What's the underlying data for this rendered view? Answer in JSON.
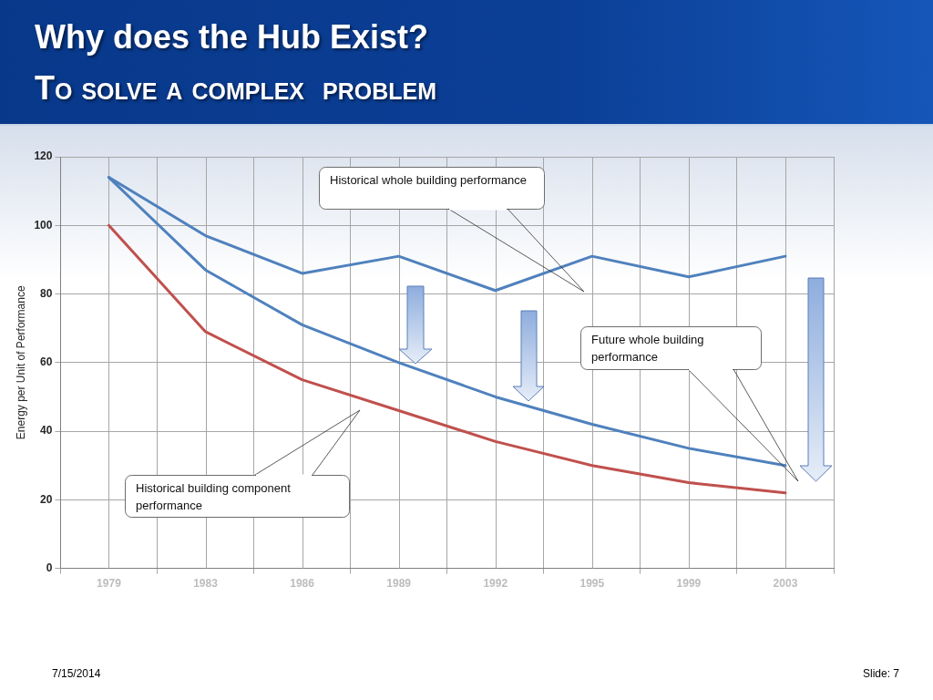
{
  "chart_data": {
    "type": "line",
    "title": "Why does the Hub Exist?",
    "subtitle": "To solve a complex  problem",
    "ylabel": "Energy per Unit of Performance",
    "categories": [
      "1979",
      "1983",
      "1986",
      "1989",
      "1992",
      "1995",
      "1999",
      "2003"
    ],
    "series": [
      {
        "color": "#4f81bd",
        "values": [
          114,
          97,
          86,
          91,
          81,
          91,
          85,
          91
        ]
      },
      {
        "color": "#4f81bd",
        "values": [
          114,
          87,
          71,
          60,
          50,
          42,
          35,
          30
        ]
      },
      {
        "color": "#c0504d",
        "values": [
          100,
          69,
          55,
          46,
          37,
          30,
          25,
          22
        ]
      }
    ],
    "ylim": [
      0,
      120
    ],
    "yticks": [
      0,
      20,
      40,
      60,
      80,
      100,
      120
    ],
    "grid": true,
    "marker": "none",
    "line_style": "solid",
    "annotations": [
      "Historical whole building performance",
      "Historical building component performance",
      "Future whole building performance",
      "7/15/2014",
      "Slide: 7"
    ]
  }
}
